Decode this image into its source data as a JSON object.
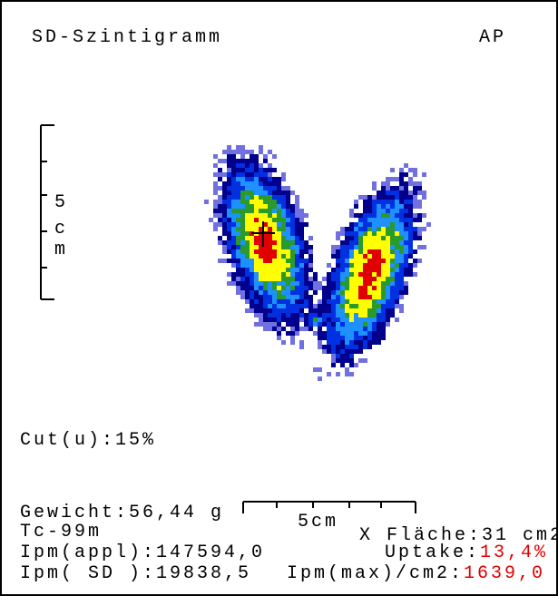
{
  "header": {
    "title": "SD-Szintigramm",
    "view": "AP"
  },
  "vertical_scale": {
    "label": [
      "5",
      "c",
      "m"
    ]
  },
  "cut": "Cut(u):15%",
  "horizontal_scale": {
    "label": "5cm"
  },
  "left_info": [
    "Gewicht:56,44 g",
    "Tc-99m",
    "Ipm(appl):147594,0",
    "Ipm( SD ):19838,5"
  ],
  "results": [
    {
      "label": "X Fläche:",
      "value": "31 cm2"
    },
    {
      "label": "Uptake:",
      "value": "13,4%"
    },
    {
      "label": "Ipm(max)/cm2:",
      "value": "1639,0"
    }
  ]
}
